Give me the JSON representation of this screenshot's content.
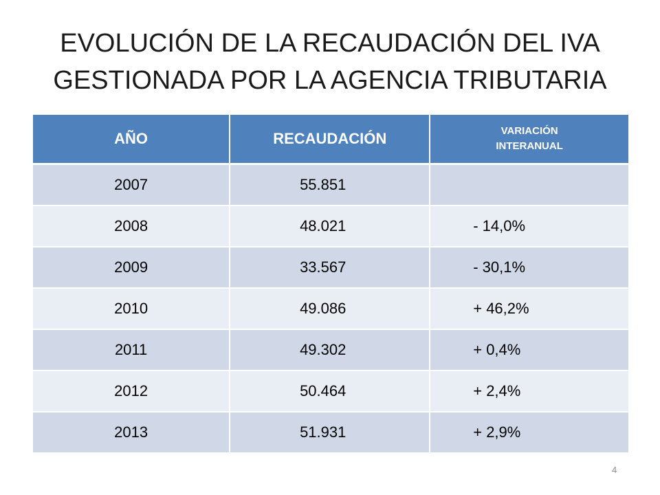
{
  "slide": {
    "title_line1": "EVOLUCIÓN DE LA RECAUDACIÓN DEL IVA",
    "title_line2": "GESTIONADA POR LA AGENCIA TRIBUTARIA",
    "page_number": "4"
  },
  "table": {
    "headers": [
      "AÑO",
      "RECAUDACIÓN",
      "VARIACIÓN",
      "INTERANUAL"
    ],
    "rows": [
      {
        "year": "2007",
        "amount": "55.851",
        "change": ""
      },
      {
        "year": "2008",
        "amount": "48.021",
        "change": "- 14,0%"
      },
      {
        "year": "2009",
        "amount": "33.567",
        "change": "- 30,1%"
      },
      {
        "year": "2010",
        "amount": "49.086",
        "change": "+ 46,2%"
      },
      {
        "year": "2011",
        "amount": "49.302",
        "change": "+ 0,4%"
      },
      {
        "year": "2012",
        "amount": "50.464",
        "change": "+ 2,4%"
      },
      {
        "year": "2013",
        "amount": "51.931",
        "change": "+ 2,9%"
      }
    ]
  },
  "colors": {
    "header_bg": "#4f81bd",
    "row_dark": "#d0d8e8",
    "row_light": "#e9edf4"
  }
}
